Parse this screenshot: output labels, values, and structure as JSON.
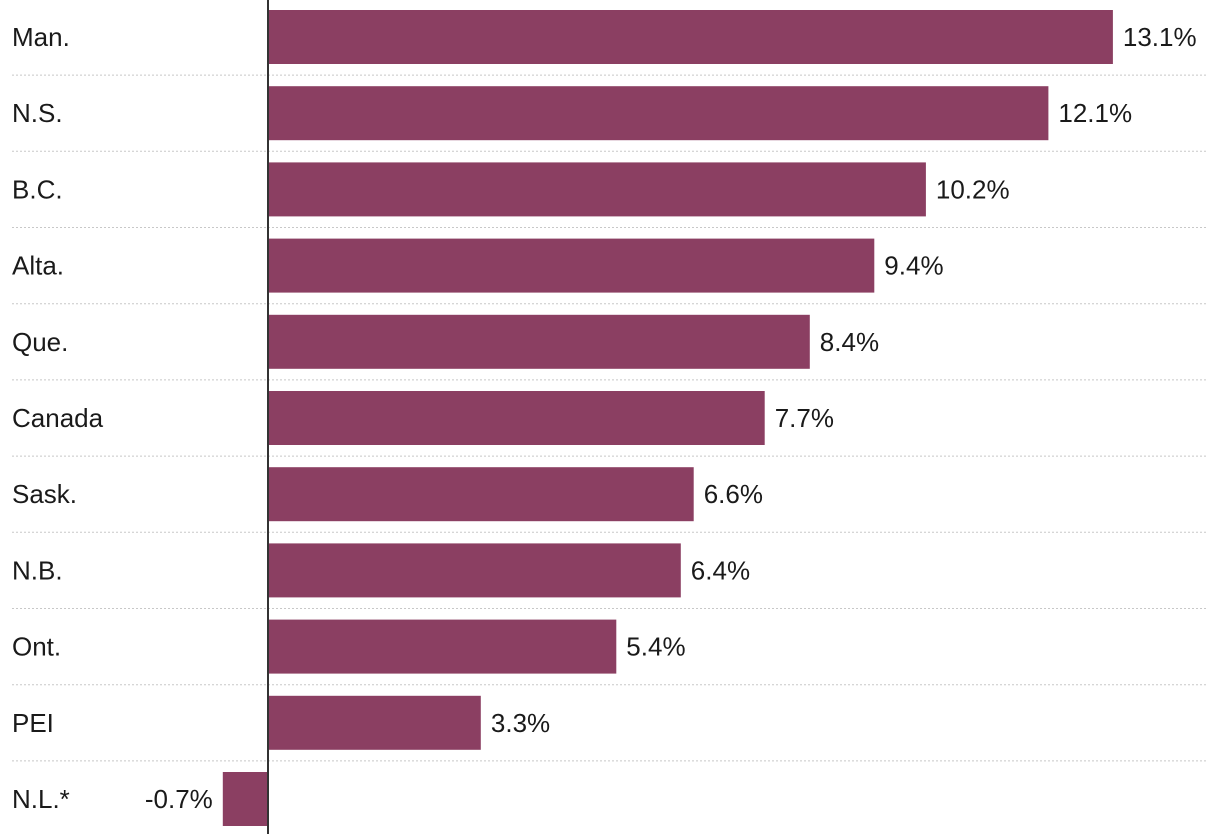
{
  "chart_data": {
    "type": "bar",
    "orientation": "horizontal",
    "title": "",
    "xlabel": "",
    "ylabel": "",
    "categories": [
      "Man.",
      "N.S.",
      "B.C.",
      "Alta.",
      "Que.",
      "Canada",
      "Sask.",
      "N.B.",
      "Ont.",
      "PEI",
      "N.L.*"
    ],
    "values": [
      13.1,
      12.1,
      10.2,
      9.4,
      8.4,
      7.7,
      6.6,
      6.4,
      5.4,
      3.3,
      -0.7
    ],
    "value_labels": [
      "13.1%",
      "12.1%",
      "10.2%",
      "9.4%",
      "8.4%",
      "7.7%",
      "6.6%",
      "6.4%",
      "5.4%",
      "3.3%",
      "-0.7%"
    ],
    "xlim": [
      -0.7,
      13.1
    ],
    "grid": "dotted row separators",
    "colors": {
      "bar": "#8b3f62",
      "text": "#1a1a1a",
      "axis": "#333333",
      "grid": "#c8c8c8"
    }
  }
}
